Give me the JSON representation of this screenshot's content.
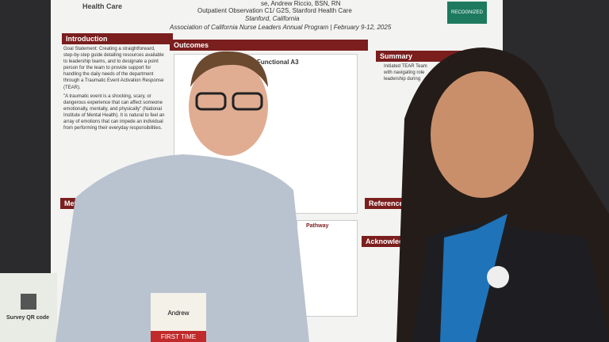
{
  "poster": {
    "header": {
      "left": "Health Care",
      "authors": "se, Andrew Riccio, BSN, RN",
      "unit": "Outpatient Observation C1/ G2S, Stanford Health Care",
      "location": "Stanford, California",
      "program": "Association of California Nurse Leaders Annual Program | February 9-12, 2025",
      "badge": "RECOGNIZED"
    },
    "sections": {
      "introduction": "Introduction",
      "outcomes": "Outcomes",
      "summary": "Summary",
      "methods": "Methods",
      "references": "References",
      "acknowledgements": "Acknowledgem",
      "pathway": "Pathway"
    },
    "intro_text": "Goal Statement: Creating a straightforward, step-by-step guide detailing resources available to leadership teams, and to designate a point person for the team to provide support for handling the daily needs of the department through a Traumatic Event Activation Response (TEAR).",
    "intro_text2": "\"A traumatic event is a shocking, scary, or dangerous experience that can affect someone emotionally, mentally, and physically\" (National Institute of Mental Health). It is natural to feel an array of emotions that can impede an individual from performing their everyday responsibilities.",
    "summary_text": "Initiated TEAR Team with navigating role leadership during",
    "outcomes_box": "Functional A3"
  },
  "qr_card": "Survey QR code",
  "badge_name": "Andrew",
  "badge_tag": "FIRST TIME"
}
